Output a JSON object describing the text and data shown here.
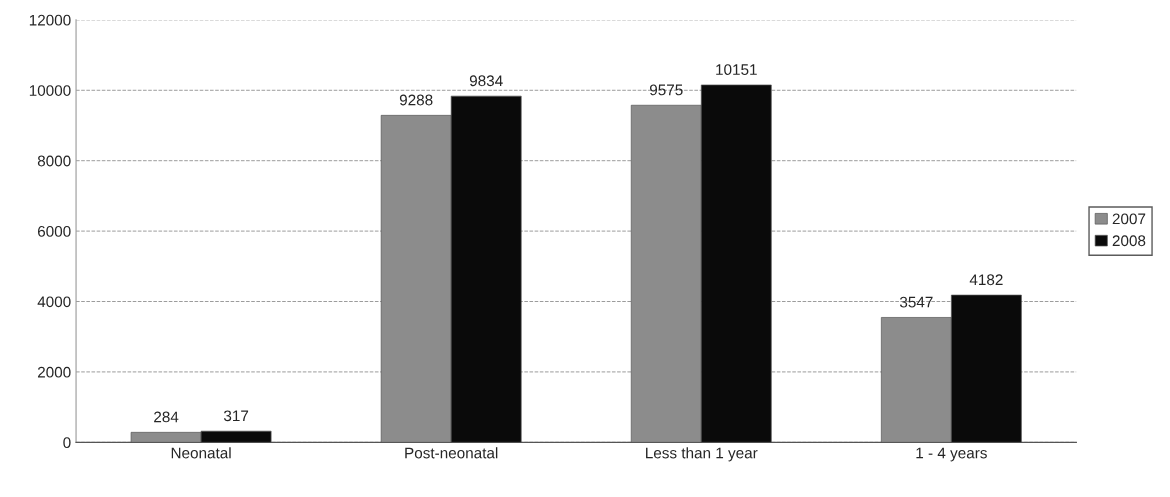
{
  "chart_data": {
    "type": "bar",
    "categories": [
      "Neonatal",
      "Post-neonatal",
      "Less than 1 year",
      "1 - 4 years"
    ],
    "series": [
      {
        "name": "2007",
        "color": "#8c8c8c",
        "values": [
          284,
          9288,
          9575,
          3547
        ]
      },
      {
        "name": "2008",
        "color": "#0a0a0a",
        "values": [
          317,
          9834,
          10151,
          4182
        ]
      }
    ],
    "ylim": [
      0,
      12000
    ],
    "yticks": [
      0,
      2000,
      4000,
      6000,
      8000,
      10000,
      12000
    ],
    "grid": "y",
    "legend": "right",
    "data_labels": true
  }
}
